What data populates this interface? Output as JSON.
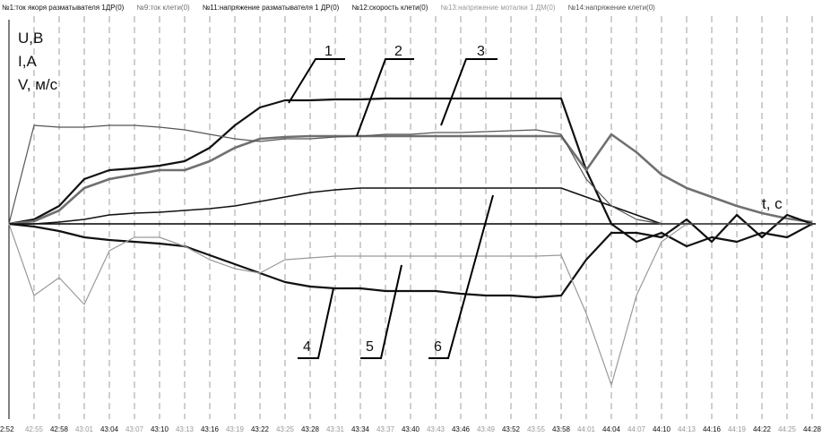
{
  "chart_data": {
    "type": "line",
    "legend": [
      "№1:ток якоря разматывателя 1ДР(0)",
      "№9:ток клети(0)",
      "№11:напряжение разматывателя 1 ДР(0)",
      "№12:скорость клети(0)",
      "№13:напряжение моталки 1 ДМ(0)",
      "№14:напряжение клети(0)"
    ],
    "y_axis_labels": [
      "U,B",
      "I,A",
      "V, м/с"
    ],
    "x_label": "t, c",
    "curve_labels": [
      "1",
      "2",
      "3",
      "4",
      "5",
      "6"
    ],
    "categories": [
      "2:52",
      "42:55",
      "42:58",
      "43:01",
      "43:04",
      "43:07",
      "43:10",
      "43:13",
      "43:16",
      "43:19",
      "43:22",
      "43:25",
      "43:28",
      "43:31",
      "43:34",
      "43:37",
      "43:40",
      "43:43",
      "43:46",
      "43:49",
      "43:52",
      "43:55",
      "43:58",
      "44:01",
      "44:04",
      "44:07",
      "44:10",
      "44:13",
      "44:16",
      "44:19",
      "44:22",
      "44:25",
      "44:28"
    ],
    "ylim": [
      -220,
      220
    ],
    "grid": true,
    "series": [
      {
        "name": "№1:ток якоря разматывателя 1ДР(0)",
        "color": "#111111",
        "line_width": 2.2,
        "values": [
          0,
          5,
          20,
          50,
          60,
          62,
          65,
          70,
          85,
          110,
          130,
          138,
          138,
          139,
          139,
          140,
          140,
          140,
          140,
          140,
          140,
          140,
          140,
          60,
          0,
          -20,
          -10,
          -25,
          -15,
          -20,
          -10,
          -15,
          0
        ]
      },
      {
        "name": "№9:ток клети(0)",
        "color": "#707070",
        "line_width": 2.6,
        "values": [
          0,
          3,
          15,
          40,
          50,
          55,
          60,
          60,
          70,
          85,
          95,
          97,
          98,
          98,
          98,
          98,
          98,
          98,
          98,
          98,
          98,
          98,
          98,
          60,
          100,
          80,
          55,
          40,
          30,
          20,
          12,
          6,
          2
        ]
      },
      {
        "name": "№11:напряжение разматывателя 1 ДР(0)",
        "color": "#111111",
        "line_width": 2.2,
        "values": [
          0,
          -3,
          -8,
          -15,
          -18,
          -20,
          -22,
          -25,
          -35,
          -45,
          -55,
          -65,
          -70,
          -72,
          -72,
          -75,
          -75,
          -75,
          -78,
          -80,
          -80,
          -82,
          -80,
          -40,
          -10,
          -10,
          -15,
          5,
          -20,
          10,
          -15,
          10,
          0
        ]
      },
      {
        "name": "№12:скорость клети(0)",
        "color": "#111111",
        "line_width": 1.6,
        "values": [
          0,
          0,
          2,
          5,
          10,
          12,
          13,
          15,
          17,
          20,
          25,
          30,
          35,
          38,
          40,
          40,
          40,
          40,
          40,
          40,
          40,
          40,
          40,
          30,
          20,
          10,
          0,
          0,
          0,
          0,
          0,
          0,
          0
        ]
      },
      {
        "name": "№13:напряжение моталки 1 ДМ(0)",
        "color": "#9a9a9a",
        "line_width": 1.2,
        "values": [
          0,
          -80,
          -60,
          -90,
          -30,
          -15,
          -15,
          -25,
          -40,
          -50,
          -55,
          -40,
          -38,
          -36,
          -36,
          -36,
          -36,
          -36,
          -36,
          -36,
          -36,
          -36,
          -35,
          -100,
          -180,
          -80,
          -20,
          0,
          0,
          0,
          0,
          0,
          0
        ]
      },
      {
        "name": "№14:напряжение клети(0)",
        "color": "#555555",
        "line_width": 1.2,
        "values": [
          0,
          110,
          108,
          108,
          110,
          110,
          108,
          105,
          100,
          95,
          92,
          95,
          95,
          97,
          98,
          100,
          100,
          102,
          102,
          103,
          104,
          105,
          100,
          50,
          20,
          5,
          0,
          0,
          0,
          0,
          0,
          0,
          0
        ]
      }
    ]
  }
}
